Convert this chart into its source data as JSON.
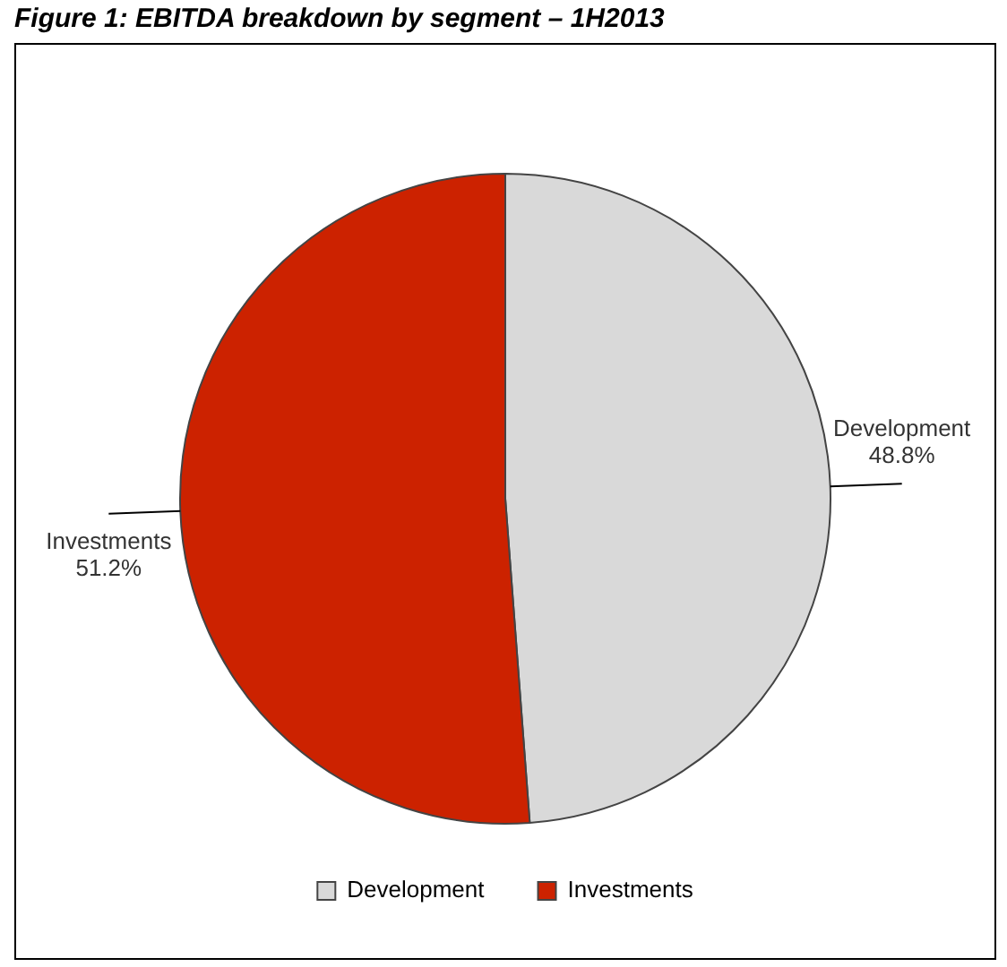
{
  "chart_data": {
    "type": "pie",
    "title": "Figure 1: EBITDA breakdown by segment – 1H2013",
    "categories": [
      "Development",
      "Investments"
    ],
    "values": [
      48.8,
      51.2
    ],
    "colors": [
      "#d9d9d9",
      "#cc2200"
    ],
    "value_labels": [
      "48.8%",
      "51.2%"
    ],
    "legend": "bottom"
  }
}
